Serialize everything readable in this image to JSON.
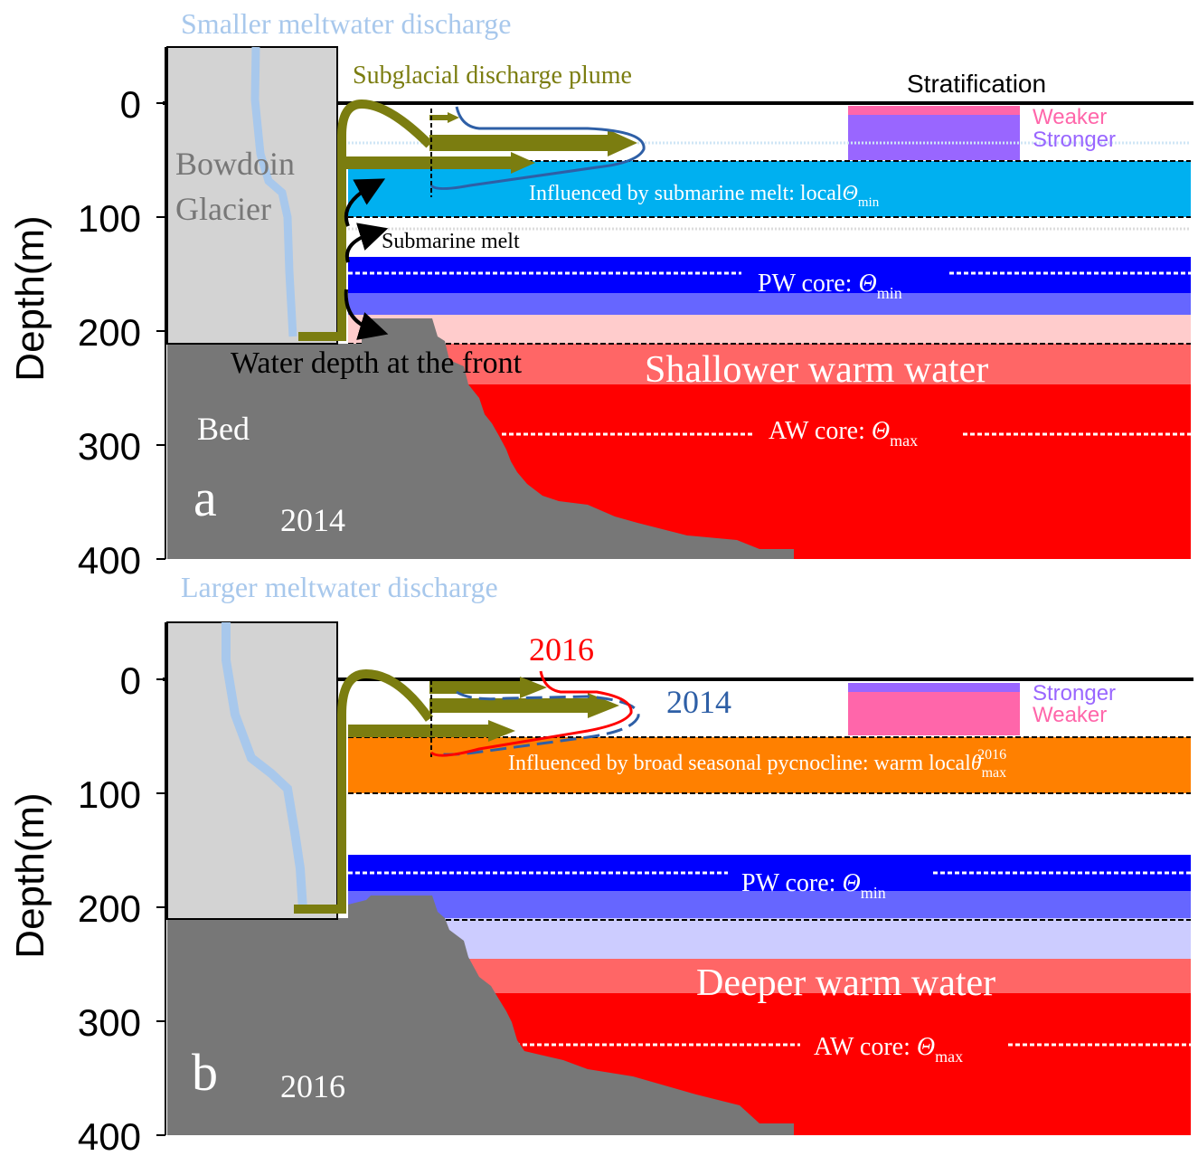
{
  "colors": {
    "glacier": "#d3d3d3",
    "bed": "#777777",
    "plume": "#7b7d10",
    "meltwater_line": "#a8c8ec",
    "ice_surface_blue": "#00b0f0",
    "pw_blue": "#0000ff",
    "pw_light_blue": "#6666ff",
    "pale_pink": "#ffcccc",
    "warm_light": "#ff6666",
    "aw_red": "#ff0000",
    "orange": "#ff8000",
    "lavender": "#ccccff",
    "pink_weaker": "#ff66aa",
    "purple_stronger": "#9966ff",
    "line_2014": "#2e5fa6",
    "line_2016": "#ff0000"
  },
  "axis": {
    "ylabel": "Depth(m)",
    "ticks": [
      "0",
      "100",
      "200",
      "300",
      "400"
    ]
  },
  "panel_a": {
    "discharge_label": "Smaller meltwater discharge",
    "plume_label": "Subglacial  discharge  plume",
    "stratification_label": "Stratification",
    "legend_weaker": "Weaker",
    "legend_stronger": "Stronger",
    "glacier_label_line1": "Bowdoin",
    "glacier_label_line2": "Glacier",
    "submarine_band_label": "Influenced by submarine melt: local",
    "theta_symbol": "Θ",
    "min_sub": "min",
    "max_sub": "max",
    "submarine_melt_label": "Submarine melt",
    "pw_core_label": "PW core: ",
    "water_depth_label": "Water depth at the front",
    "warm_water_label": "Shallower warm water",
    "aw_core_label": "AW core: ",
    "bed_label": "Bed",
    "panel_letter": "a",
    "year": "2014"
  },
  "panel_b": {
    "discharge_label": "Larger meltwater discharge",
    "legend_stronger": "Stronger",
    "legend_weaker": "Weaker",
    "profile_2016": "2016",
    "profile_2014": "2014",
    "pycnocline_label": "Influenced by broad seasonal pycnocline: warm local",
    "theta_lower": "θ",
    "max_sub": "max",
    "year_sup": "2016",
    "pw_core_label": "PW core: ",
    "theta_symbol": "Θ",
    "min_sub": "min",
    "warm_water_label": "Deeper warm water",
    "aw_core_label": "AW core: ",
    "panel_letter": "b",
    "year": "2016"
  }
}
